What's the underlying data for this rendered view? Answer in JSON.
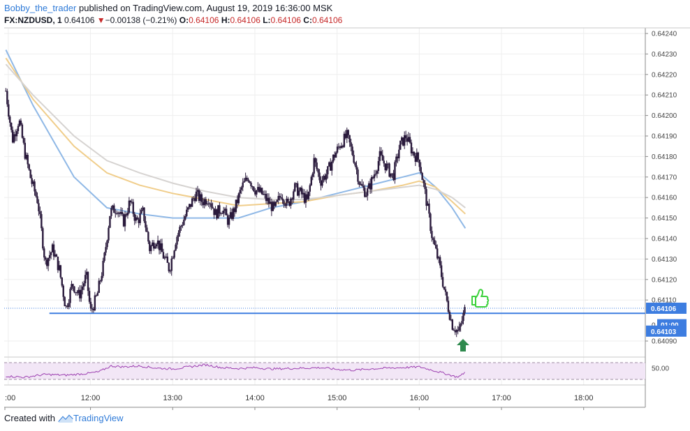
{
  "header": {
    "author": "Bobby_the_trader",
    "published_text": "published on TradingView.com, August 19, 2019 16:36:00 MSK",
    "symbol": "FX:NZDUSD, 1",
    "last": "0.64106",
    "change_arrow": "▼",
    "change": "−0.00138 (−0.21%)",
    "o_label": "O:",
    "o": "0.64106",
    "h_label": "H:",
    "h": "0.64106",
    "l_label": "L:",
    "l": "0.64106",
    "c_label": "C:",
    "c": "0.64106"
  },
  "footer": {
    "created_with": "Created with",
    "brand": "TradingView"
  },
  "colors": {
    "candle": "#2a1a3c",
    "ma_blue": "#8fb8e6",
    "ma_orange": "#f0cd8a",
    "ma_grey": "#d6d3d1",
    "hline": "#3d7de0",
    "rsi": "#9c3fb0",
    "thumb": "#3bd13b",
    "arrow": "#2f8a4e"
  },
  "icons": {
    "thumb": "thumbs-up-icon",
    "arrow": "up-arrow-icon",
    "brand": "tradingview-logo-icon"
  },
  "chart_data": {
    "type": "candlestick",
    "symbol": "FX:NZDUSD",
    "timeframe": "1",
    "price_axis": {
      "min": 0.6409,
      "max": 0.6424,
      "labeled_min": 0.6409,
      "labeled_max": 0.6424,
      "tick_labels": [
        "0.64240",
        "0.64230",
        "0.64220",
        "0.64210",
        "0.64200",
        "0.64190",
        "0.64180",
        "0.64170",
        "0.64160",
        "0.64150",
        "0.64140",
        "0.64130",
        "0.64120",
        "0.64110",
        "0.64090"
      ]
    },
    "time_axis": {
      "tick_labels": [
        ":00",
        "12:00",
        "13:00",
        "14:00",
        "15:00",
        "16:00",
        "17:00",
        "18:00"
      ],
      "hours_start": 10.95,
      "hours_end": 18.75
    },
    "price_markers": [
      {
        "label": "0.64106",
        "value": 0.64106,
        "style": "last"
      },
      {
        "label": "01:00",
        "value": 0.641,
        "style": "countdown",
        "partial_label": "0"
      },
      {
        "label": "0.64103",
        "value": 0.64103,
        "style": "line"
      }
    ],
    "horizontal_line": {
      "value": 0.641035,
      "from_hour": 11.5
    },
    "last_price_line": 0.64106,
    "close_path": [
      [
        10.97,
        0.64212
      ],
      [
        11.05,
        0.64188
      ],
      [
        11.13,
        0.64198
      ],
      [
        11.2,
        0.64182
      ],
      [
        11.28,
        0.64168
      ],
      [
        11.36,
        0.64158
      ],
      [
        11.45,
        0.64128
      ],
      [
        11.54,
        0.64135
      ],
      [
        11.62,
        0.64125
      ],
      [
        11.7,
        0.64106
      ],
      [
        11.78,
        0.64118
      ],
      [
        11.86,
        0.64112
      ],
      [
        11.95,
        0.64122
      ],
      [
        12.0,
        0.64104
      ],
      [
        12.08,
        0.64112
      ],
      [
        12.16,
        0.64128
      ],
      [
        12.24,
        0.64153
      ],
      [
        12.32,
        0.64155
      ],
      [
        12.4,
        0.64148
      ],
      [
        12.48,
        0.64158
      ],
      [
        12.56,
        0.64148
      ],
      [
        12.64,
        0.64153
      ],
      [
        12.72,
        0.64135
      ],
      [
        12.8,
        0.6414
      ],
      [
        12.88,
        0.64132
      ],
      [
        12.96,
        0.64125
      ],
      [
        13.04,
        0.6414
      ],
      [
        13.12,
        0.64148
      ],
      [
        13.2,
        0.64155
      ],
      [
        13.28,
        0.64162
      ],
      [
        13.36,
        0.64158
      ],
      [
        13.44,
        0.6416
      ],
      [
        13.52,
        0.64152
      ],
      [
        13.6,
        0.64155
      ],
      [
        13.68,
        0.64148
      ],
      [
        13.76,
        0.64155
      ],
      [
        13.84,
        0.64165
      ],
      [
        13.92,
        0.6417
      ],
      [
        14.0,
        0.64164
      ],
      [
        14.08,
        0.64162
      ],
      [
        14.16,
        0.64158
      ],
      [
        14.24,
        0.64154
      ],
      [
        14.32,
        0.64162
      ],
      [
        14.4,
        0.64156
      ],
      [
        14.48,
        0.64165
      ],
      [
        14.56,
        0.64162
      ],
      [
        14.64,
        0.64158
      ],
      [
        14.72,
        0.64178
      ],
      [
        14.8,
        0.64168
      ],
      [
        14.88,
        0.64172
      ],
      [
        14.96,
        0.6418
      ],
      [
        15.04,
        0.64186
      ],
      [
        15.12,
        0.6419
      ],
      [
        15.2,
        0.6418
      ],
      [
        15.28,
        0.64166
      ],
      [
        15.36,
        0.64162
      ],
      [
        15.44,
        0.6417
      ],
      [
        15.52,
        0.6418
      ],
      [
        15.6,
        0.64175
      ],
      [
        15.68,
        0.6417
      ],
      [
        15.76,
        0.64185
      ],
      [
        15.84,
        0.6419
      ],
      [
        15.92,
        0.64182
      ],
      [
        16.0,
        0.64178
      ],
      [
        16.08,
        0.6416
      ],
      [
        16.16,
        0.6414
      ],
      [
        16.24,
        0.64128
      ],
      [
        16.32,
        0.64112
      ],
      [
        16.4,
        0.64098
      ],
      [
        16.48,
        0.64094
      ],
      [
        16.56,
        0.64106
      ]
    ],
    "moving_averages": [
      {
        "color_key": "ma_blue",
        "points": [
          [
            10.97,
            0.64232
          ],
          [
            11.3,
            0.64205
          ],
          [
            11.8,
            0.6417
          ],
          [
            12.2,
            0.64155
          ],
          [
            12.6,
            0.64152
          ],
          [
            13.0,
            0.6415
          ],
          [
            13.4,
            0.6415
          ],
          [
            13.8,
            0.6415
          ],
          [
            14.2,
            0.64155
          ],
          [
            14.6,
            0.64158
          ],
          [
            15.0,
            0.64162
          ],
          [
            15.4,
            0.64166
          ],
          [
            15.8,
            0.6417
          ],
          [
            16.0,
            0.64172
          ],
          [
            16.2,
            0.64165
          ],
          [
            16.4,
            0.64155
          ],
          [
            16.56,
            0.64145
          ]
        ]
      },
      {
        "color_key": "ma_orange",
        "points": [
          [
            10.97,
            0.64228
          ],
          [
            11.3,
            0.64208
          ],
          [
            11.8,
            0.64185
          ],
          [
            12.2,
            0.64172
          ],
          [
            12.6,
            0.64166
          ],
          [
            13.0,
            0.64162
          ],
          [
            13.4,
            0.64159
          ],
          [
            13.8,
            0.64156
          ],
          [
            14.2,
            0.64157
          ],
          [
            14.6,
            0.64158
          ],
          [
            15.0,
            0.64161
          ],
          [
            15.4,
            0.64163
          ],
          [
            15.8,
            0.64166
          ],
          [
            16.0,
            0.64168
          ],
          [
            16.2,
            0.64165
          ],
          [
            16.4,
            0.64158
          ],
          [
            16.56,
            0.64152
          ]
        ]
      },
      {
        "color_key": "ma_grey",
        "points": [
          [
            10.97,
            0.64225
          ],
          [
            11.3,
            0.6421
          ],
          [
            11.8,
            0.6419
          ],
          [
            12.2,
            0.64178
          ],
          [
            12.6,
            0.64172
          ],
          [
            13.0,
            0.64167
          ],
          [
            13.4,
            0.64163
          ],
          [
            13.8,
            0.6416
          ],
          [
            14.2,
            0.64159
          ],
          [
            14.6,
            0.64159
          ],
          [
            15.0,
            0.64161
          ],
          [
            15.4,
            0.64163
          ],
          [
            15.8,
            0.64165
          ],
          [
            16.0,
            0.64166
          ],
          [
            16.2,
            0.64164
          ],
          [
            16.4,
            0.6416
          ],
          [
            16.56,
            0.64155
          ]
        ]
      }
    ],
    "rsi": {
      "level_label": "50.00",
      "axis_min": 20,
      "axis_max": 80,
      "upper_band": 70,
      "lower_band": 30,
      "points": [
        [
          10.97,
          38
        ],
        [
          11.2,
          35
        ],
        [
          11.45,
          42
        ],
        [
          11.7,
          40
        ],
        [
          11.95,
          44
        ],
        [
          12.1,
          48
        ],
        [
          12.25,
          62
        ],
        [
          12.4,
          60
        ],
        [
          12.6,
          62
        ],
        [
          12.8,
          57
        ],
        [
          13.0,
          55
        ],
        [
          13.2,
          60
        ],
        [
          13.4,
          65
        ],
        [
          13.6,
          58
        ],
        [
          13.8,
          56
        ],
        [
          14.0,
          58
        ],
        [
          14.2,
          55
        ],
        [
          14.4,
          56
        ],
        [
          14.6,
          57
        ],
        [
          14.8,
          58
        ],
        [
          15.0,
          54
        ],
        [
          15.2,
          52
        ],
        [
          15.4,
          55
        ],
        [
          15.6,
          57
        ],
        [
          15.8,
          58
        ],
        [
          16.0,
          60
        ],
        [
          16.2,
          50
        ],
        [
          16.35,
          42
        ],
        [
          16.45,
          36
        ],
        [
          16.5,
          38
        ],
        [
          16.56,
          48
        ]
      ]
    }
  }
}
